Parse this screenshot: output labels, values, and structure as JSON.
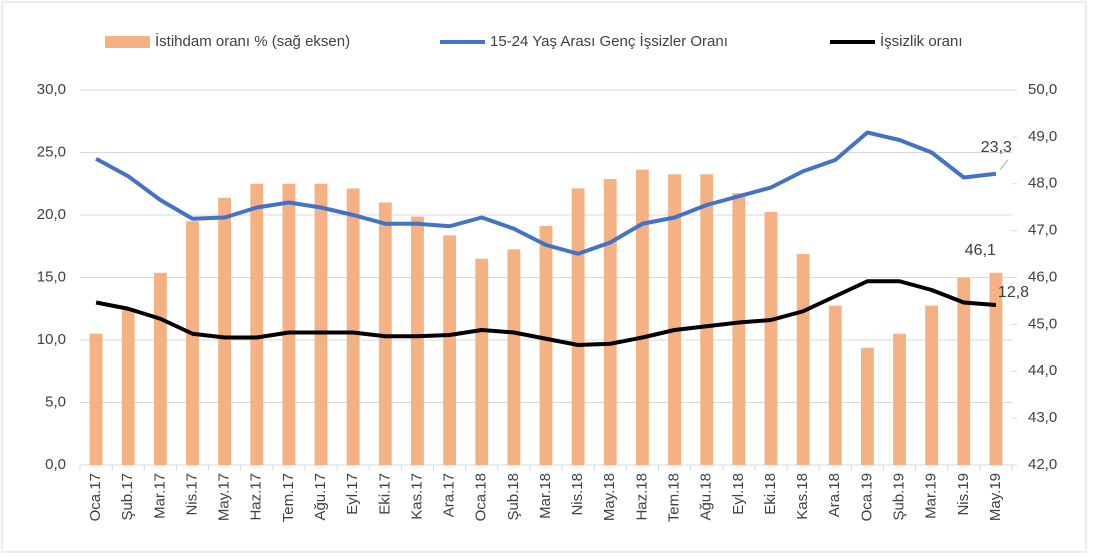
{
  "chart_data": {
    "type": "bar-line",
    "categories": [
      "Oca.17",
      "Şub.17",
      "Mar.17",
      "Nis.17",
      "May.17",
      "Haz.17",
      "Tem.17",
      "Ağu.17",
      "Eyl.17",
      "Eki.17",
      "Kas.17",
      "Ara.17",
      "Oca.18",
      "Şub.18",
      "Mar.18",
      "Nis.18",
      "May.18",
      "Haz.18",
      "Tem.18",
      "Ağu.18",
      "Eyl.18",
      "Eki.18",
      "Kas.18",
      "Ara.18",
      "Oca.19",
      "Şub.19",
      "Mar.19",
      "Nis.19",
      "May.19"
    ],
    "series": [
      {
        "name": "İstihdam oranı % (sağ eksen)",
        "type": "bar",
        "axis": "y2",
        "color": "#f4b183",
        "values": [
          44.8,
          45.3,
          46.1,
          47.2,
          47.7,
          48.0,
          48.0,
          48.0,
          47.9,
          47.6,
          47.3,
          46.9,
          46.4,
          46.6,
          47.1,
          47.9,
          48.1,
          48.3,
          48.2,
          48.2,
          47.8,
          47.4,
          46.5,
          45.4,
          44.5,
          44.8,
          45.4,
          46.0,
          46.1
        ],
        "value_labels": [
          null,
          null,
          null,
          null,
          null,
          null,
          null,
          null,
          null,
          null,
          null,
          null,
          null,
          null,
          null,
          null,
          null,
          null,
          null,
          null,
          null,
          null,
          null,
          null,
          null,
          null,
          null,
          null,
          "46,1"
        ]
      },
      {
        "name": "15-24 Yaş Arası Genç İşsizler Oranı",
        "type": "line",
        "color": "#4472c4",
        "values": [
          24.5,
          23.1,
          21.2,
          19.7,
          19.8,
          20.6,
          21.0,
          20.6,
          20.0,
          19.3,
          19.3,
          19.1,
          19.8,
          18.9,
          17.6,
          16.9,
          17.8,
          19.3,
          19.8,
          20.8,
          21.5,
          22.2,
          23.5,
          24.4,
          26.6,
          26.0,
          25.0,
          23.0,
          23.3
        ],
        "value_labels": [
          null,
          null,
          null,
          null,
          null,
          null,
          null,
          null,
          null,
          null,
          null,
          null,
          null,
          null,
          null,
          null,
          null,
          null,
          null,
          null,
          null,
          null,
          null,
          null,
          null,
          null,
          null,
          null,
          "23,3"
        ]
      },
      {
        "name": "İşsizlik oranı",
        "type": "line",
        "color": "#000000",
        "values": [
          13.0,
          12.5,
          11.7,
          10.5,
          10.2,
          10.2,
          10.6,
          10.6,
          10.6,
          10.3,
          10.3,
          10.4,
          10.8,
          10.6,
          10.1,
          9.6,
          9.7,
          10.2,
          10.8,
          11.1,
          11.4,
          11.6,
          12.3,
          13.5,
          14.7,
          14.7,
          14.0,
          13.0,
          12.8
        ],
        "value_labels": [
          null,
          null,
          null,
          null,
          null,
          null,
          null,
          null,
          null,
          null,
          null,
          null,
          null,
          null,
          null,
          null,
          null,
          null,
          null,
          null,
          null,
          null,
          null,
          null,
          null,
          null,
          null,
          null,
          "12,8"
        ]
      }
    ],
    "ylim": [
      0,
      30
    ],
    "yticks": [
      {
        "value": 0,
        "label": "0,0"
      },
      {
        "value": 5,
        "label": "5,0"
      },
      {
        "value": 10,
        "label": "10,0"
      },
      {
        "value": 15,
        "label": "15,0"
      },
      {
        "value": 20,
        "label": "20,0"
      },
      {
        "value": 25,
        "label": "25,0"
      },
      {
        "value": 30,
        "label": "30,0"
      }
    ],
    "y2lim": [
      42,
      50
    ],
    "y2ticks": [
      {
        "value": 42,
        "label": "42,0"
      },
      {
        "value": 43,
        "label": "43,0"
      },
      {
        "value": 44,
        "label": "44,0"
      },
      {
        "value": 45,
        "label": "45,0"
      },
      {
        "value": 46,
        "label": "46,0"
      },
      {
        "value": 47,
        "label": "47,0"
      },
      {
        "value": 48,
        "label": "48,0"
      },
      {
        "value": 49,
        "label": "49,0"
      },
      {
        "value": 50,
        "label": "50,0"
      }
    ],
    "grid": true,
    "legend": "top"
  }
}
